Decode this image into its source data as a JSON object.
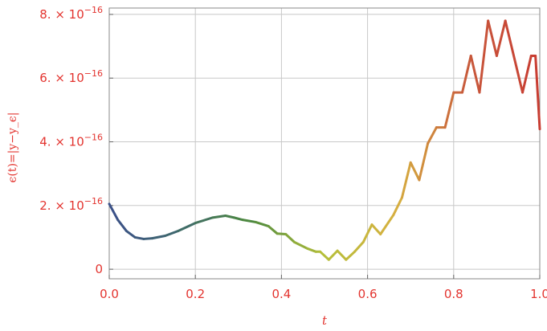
{
  "chart_data": {
    "type": "line",
    "xlabel": "t",
    "ylabel": "ϵ(t)=|y−y_ϵ|",
    "xlim": [
      0,
      1
    ],
    "ylim": [
      -0.3,
      8.2
    ],
    "grid": true,
    "x_ticks": [
      {
        "value": 0.0,
        "label": "0.0"
      },
      {
        "value": 0.2,
        "label": "0.2"
      },
      {
        "value": 0.4,
        "label": "0.4"
      },
      {
        "value": 0.6,
        "label": "0.6"
      },
      {
        "value": 0.8,
        "label": "0.8"
      },
      {
        "value": 1.0,
        "label": "1.0"
      }
    ],
    "y_ticks": [
      {
        "value": 0,
        "label": "0"
      },
      {
        "value": 2,
        "label": "2. × 10",
        "exp": "−16"
      },
      {
        "value": 4,
        "label": "4. × 10",
        "exp": "−16"
      },
      {
        "value": 6,
        "label": "6. × 10",
        "exp": "−16"
      },
      {
        "value": 8,
        "label": "8. × 10",
        "exp": "−16"
      }
    ],
    "y_units_note": "values in units of 1e-16",
    "series": [
      {
        "points": [
          [
            0.0,
            2.05
          ],
          [
            0.02,
            1.55
          ],
          [
            0.04,
            1.2
          ],
          [
            0.06,
            1.0
          ],
          [
            0.08,
            0.95
          ],
          [
            0.1,
            0.97
          ],
          [
            0.13,
            1.05
          ],
          [
            0.16,
            1.2
          ],
          [
            0.2,
            1.45
          ],
          [
            0.24,
            1.62
          ],
          [
            0.27,
            1.68
          ],
          [
            0.29,
            1.62
          ],
          [
            0.31,
            1.55
          ],
          [
            0.34,
            1.48
          ],
          [
            0.37,
            1.35
          ],
          [
            0.39,
            1.12
          ],
          [
            0.41,
            1.1
          ],
          [
            0.43,
            0.85
          ],
          [
            0.46,
            0.65
          ],
          [
            0.48,
            0.55
          ],
          [
            0.49,
            0.55
          ],
          [
            0.51,
            0.3
          ],
          [
            0.53,
            0.58
          ],
          [
            0.55,
            0.3
          ],
          [
            0.57,
            0.55
          ],
          [
            0.59,
            0.85
          ],
          [
            0.61,
            1.4
          ],
          [
            0.63,
            1.1
          ],
          [
            0.66,
            1.7
          ],
          [
            0.68,
            2.25
          ],
          [
            0.7,
            3.35
          ],
          [
            0.72,
            2.8
          ],
          [
            0.74,
            3.95
          ],
          [
            0.76,
            4.45
          ],
          [
            0.78,
            4.45
          ],
          [
            0.8,
            5.55
          ],
          [
            0.82,
            5.55
          ],
          [
            0.84,
            6.7
          ],
          [
            0.86,
            5.55
          ],
          [
            0.88,
            7.8
          ],
          [
            0.9,
            6.7
          ],
          [
            0.92,
            7.8
          ],
          [
            0.96,
            5.55
          ],
          [
            0.98,
            6.7
          ],
          [
            0.99,
            6.7
          ],
          [
            1.0,
            4.4
          ]
        ]
      }
    ],
    "colors": {
      "axis_text": "#e3342f",
      "grid": "#c8c8c8",
      "frame": "#888888",
      "gradient": [
        "#3b4f8a",
        "#3f6a6b",
        "#4e8a3e",
        "#b5bf3a",
        "#d6b040",
        "#c85a3c",
        "#c83c32"
      ]
    }
  }
}
